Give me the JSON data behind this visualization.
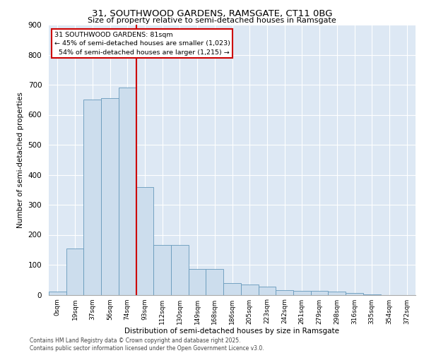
{
  "title_line1": "31, SOUTHWOOD GARDENS, RAMSGATE, CT11 0BG",
  "title_line2": "Size of property relative to semi-detached houses in Ramsgate",
  "xlabel": "Distribution of semi-detached houses by size in Ramsgate",
  "ylabel": "Number of semi-detached properties",
  "footnote1": "Contains HM Land Registry data © Crown copyright and database right 2025.",
  "footnote2": "Contains public sector information licensed under the Open Government Licence v3.0.",
  "bar_color": "#ccdded",
  "bar_edge_color": "#6699bb",
  "bg_color": "#dde8f4",
  "annotation_box_color": "#cc0000",
  "vline_color": "#cc0000",
  "categories": [
    "0sqm",
    "19sqm",
    "37sqm",
    "56sqm",
    "74sqm",
    "93sqm",
    "112sqm",
    "130sqm",
    "149sqm",
    "168sqm",
    "186sqm",
    "205sqm",
    "223sqm",
    "242sqm",
    "261sqm",
    "279sqm",
    "298sqm",
    "316sqm",
    "335sqm",
    "354sqm",
    "372sqm"
  ],
  "values": [
    10,
    155,
    650,
    655,
    690,
    360,
    165,
    165,
    85,
    85,
    40,
    35,
    28,
    15,
    14,
    14,
    10,
    5,
    2,
    0,
    0
  ],
  "property_label": "31 SOUTHWOOD GARDENS: 81sqm",
  "pct_smaller": 45,
  "pct_larger": 54,
  "count_smaller": 1023,
  "count_larger": 1215,
  "vline_position": 4.5,
  "ylim": [
    0,
    900
  ],
  "yticks": [
    0,
    100,
    200,
    300,
    400,
    500,
    600,
    700,
    800,
    900
  ]
}
